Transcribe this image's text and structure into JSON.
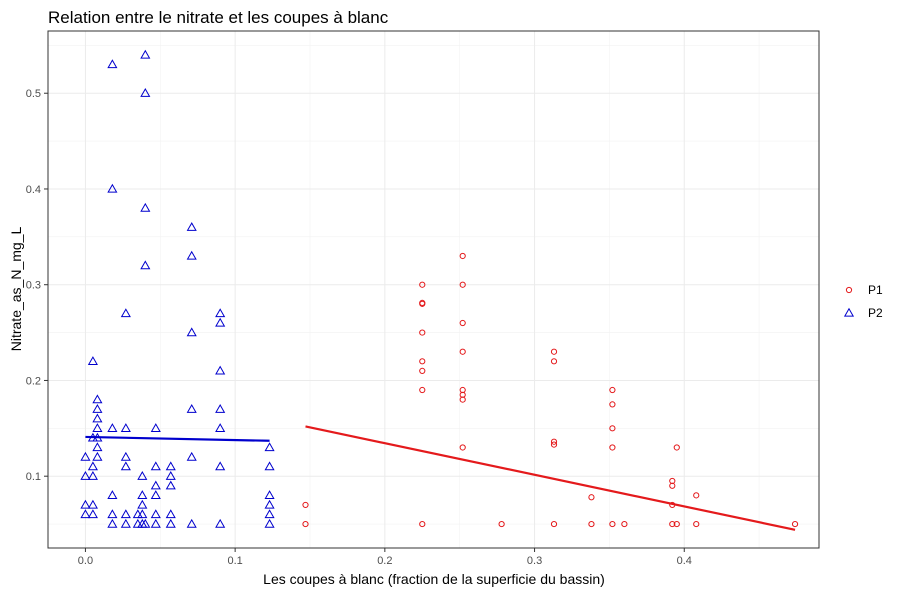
{
  "chart_data": {
    "type": "scatter",
    "title": "Relation entre le nitrate et les coupes à blanc",
    "xlabel": "Les coupes à blanc (fraction de la superficie du bassin)",
    "ylabel": "Nitrate_as_N_mg_L",
    "xlim": [
      -0.025,
      0.49
    ],
    "ylim": [
      0.025,
      0.565
    ],
    "x_ticks": [
      0.0,
      0.1,
      0.2,
      0.3,
      0.4
    ],
    "x_tick_labels": [
      "0.0",
      "0.1",
      "0.2",
      "0.3",
      "0.4"
    ],
    "y_ticks": [
      0.1,
      0.2,
      0.3,
      0.4,
      0.5
    ],
    "y_tick_labels": [
      "0.1",
      "0.2",
      "0.3",
      "0.4",
      "0.5"
    ],
    "grid": true,
    "legend_position": "right",
    "series": [
      {
        "name": "P1",
        "color": "#e41a1c",
        "marker": "circle",
        "points": [
          [
            0.147,
            0.07
          ],
          [
            0.147,
            0.05
          ],
          [
            0.225,
            0.3
          ],
          [
            0.225,
            0.28
          ],
          [
            0.225,
            0.281
          ],
          [
            0.225,
            0.25
          ],
          [
            0.225,
            0.22
          ],
          [
            0.225,
            0.21
          ],
          [
            0.225,
            0.19
          ],
          [
            0.225,
            0.05
          ],
          [
            0.252,
            0.33
          ],
          [
            0.252,
            0.3
          ],
          [
            0.252,
            0.26
          ],
          [
            0.252,
            0.23
          ],
          [
            0.252,
            0.19
          ],
          [
            0.252,
            0.185
          ],
          [
            0.252,
            0.18
          ],
          [
            0.252,
            0.13
          ],
          [
            0.278,
            0.05
          ],
          [
            0.313,
            0.23
          ],
          [
            0.313,
            0.22
          ],
          [
            0.313,
            0.136
          ],
          [
            0.313,
            0.133
          ],
          [
            0.313,
            0.05
          ],
          [
            0.338,
            0.078
          ],
          [
            0.338,
            0.05
          ],
          [
            0.352,
            0.19
          ],
          [
            0.352,
            0.175
          ],
          [
            0.352,
            0.15
          ],
          [
            0.352,
            0.13
          ],
          [
            0.352,
            0.05
          ],
          [
            0.36,
            0.05
          ],
          [
            0.392,
            0.095
          ],
          [
            0.392,
            0.09
          ],
          [
            0.392,
            0.07
          ],
          [
            0.392,
            0.05
          ],
          [
            0.395,
            0.13
          ],
          [
            0.395,
            0.05
          ],
          [
            0.408,
            0.08
          ],
          [
            0.408,
            0.05
          ],
          [
            0.474,
            0.05
          ]
        ],
        "trend": [
          [
            0.147,
            0.152
          ],
          [
            0.474,
            0.044
          ]
        ]
      },
      {
        "name": "P2",
        "color": "#0000cd",
        "marker": "triangle",
        "points": [
          [
            0.0,
            0.12
          ],
          [
            0.0,
            0.1
          ],
          [
            0.0,
            0.07
          ],
          [
            0.0,
            0.06
          ],
          [
            0.005,
            0.22
          ],
          [
            0.005,
            0.14
          ],
          [
            0.005,
            0.11
          ],
          [
            0.005,
            0.1
          ],
          [
            0.005,
            0.07
          ],
          [
            0.005,
            0.06
          ],
          [
            0.008,
            0.18
          ],
          [
            0.008,
            0.17
          ],
          [
            0.008,
            0.16
          ],
          [
            0.008,
            0.15
          ],
          [
            0.008,
            0.14
          ],
          [
            0.008,
            0.13
          ],
          [
            0.008,
            0.12
          ],
          [
            0.018,
            0.53
          ],
          [
            0.018,
            0.4
          ],
          [
            0.018,
            0.15
          ],
          [
            0.018,
            0.08
          ],
          [
            0.018,
            0.06
          ],
          [
            0.018,
            0.05
          ],
          [
            0.027,
            0.27
          ],
          [
            0.027,
            0.15
          ],
          [
            0.027,
            0.12
          ],
          [
            0.027,
            0.11
          ],
          [
            0.027,
            0.06
          ],
          [
            0.027,
            0.05
          ],
          [
            0.035,
            0.06
          ],
          [
            0.035,
            0.05
          ],
          [
            0.038,
            0.1
          ],
          [
            0.038,
            0.08
          ],
          [
            0.038,
            0.07
          ],
          [
            0.038,
            0.06
          ],
          [
            0.038,
            0.05
          ],
          [
            0.04,
            0.54
          ],
          [
            0.04,
            0.5
          ],
          [
            0.04,
            0.38
          ],
          [
            0.04,
            0.32
          ],
          [
            0.04,
            0.05
          ],
          [
            0.047,
            0.15
          ],
          [
            0.047,
            0.11
          ],
          [
            0.047,
            0.09
          ],
          [
            0.047,
            0.08
          ],
          [
            0.047,
            0.06
          ],
          [
            0.047,
            0.05
          ],
          [
            0.057,
            0.11
          ],
          [
            0.057,
            0.1
          ],
          [
            0.057,
            0.09
          ],
          [
            0.057,
            0.06
          ],
          [
            0.057,
            0.05
          ],
          [
            0.071,
            0.36
          ],
          [
            0.071,
            0.33
          ],
          [
            0.071,
            0.25
          ],
          [
            0.071,
            0.17
          ],
          [
            0.071,
            0.12
          ],
          [
            0.071,
            0.05
          ],
          [
            0.09,
            0.27
          ],
          [
            0.09,
            0.26
          ],
          [
            0.09,
            0.21
          ],
          [
            0.09,
            0.17
          ],
          [
            0.09,
            0.15
          ],
          [
            0.09,
            0.11
          ],
          [
            0.09,
            0.05
          ],
          [
            0.123,
            0.13
          ],
          [
            0.123,
            0.11
          ],
          [
            0.123,
            0.08
          ],
          [
            0.123,
            0.07
          ],
          [
            0.123,
            0.06
          ],
          [
            0.123,
            0.05
          ]
        ],
        "trend": [
          [
            0.0,
            0.141
          ],
          [
            0.123,
            0.137
          ]
        ]
      }
    ]
  }
}
